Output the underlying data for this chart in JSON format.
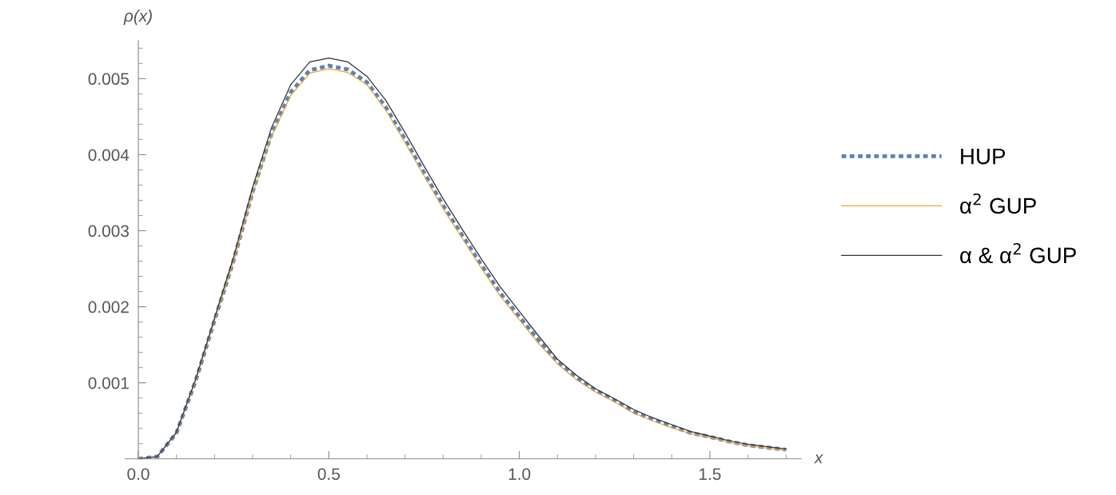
{
  "chart_data": {
    "type": "line",
    "xlabel": "x",
    "ylabel": "ρ(x)",
    "x": [
      0,
      0.05,
      0.1,
      0.15,
      0.2,
      0.25,
      0.3,
      0.35,
      0.4,
      0.45,
      0.5,
      0.55,
      0.6,
      0.65,
      0.7,
      0.75,
      0.8,
      0.85,
      0.9,
      0.95,
      1.0,
      1.05,
      1.1,
      1.15,
      1.2,
      1.25,
      1.3,
      1.35,
      1.4,
      1.45,
      1.5,
      1.55,
      1.6,
      1.65,
      1.7
    ],
    "series": [
      {
        "name": "HUP",
        "color": "#5e81b5",
        "line_style": "dotted",
        "values": [
          0,
          3e-05,
          0.00034,
          0.00102,
          0.00182,
          0.00261,
          0.00351,
          0.00428,
          0.00482,
          0.00511,
          0.00517,
          0.00512,
          0.00495,
          0.00462,
          0.0042,
          0.00376,
          0.00333,
          0.00294,
          0.00255,
          0.00218,
          0.00187,
          0.00156,
          0.00128,
          0.00107,
          0.0009,
          0.00077,
          0.00062,
          0.00052,
          0.00043,
          0.00034,
          0.00029,
          0.00023,
          0.00018,
          0.00015,
          0.00012
        ]
      },
      {
        "name": "α$^{2}$ GUP",
        "color": "#e8a838",
        "line_style": "solid",
        "values": [
          0,
          3e-05,
          0.00034,
          0.00102,
          0.00182,
          0.0026,
          0.00349,
          0.00425,
          0.00478,
          0.00507,
          0.00513,
          0.00508,
          0.00492,
          0.00458,
          0.00416,
          0.00372,
          0.00329,
          0.0029,
          0.00251,
          0.00214,
          0.00183,
          0.00152,
          0.00125,
          0.00104,
          0.00088,
          0.00075,
          0.0006,
          0.0005,
          0.00041,
          0.00033,
          0.00028,
          0.00022,
          0.00017,
          0.00014,
          0.00011
        ]
      },
      {
        "name": "α & α$^{2}$ GUP",
        "color": "#333333",
        "line_style": "solid",
        "values": [
          0,
          3e-05,
          0.00035,
          0.00104,
          0.00185,
          0.00265,
          0.00357,
          0.00436,
          0.00492,
          0.00522,
          0.00527,
          0.00522,
          0.00503,
          0.00471,
          0.00429,
          0.00385,
          0.00342,
          0.00302,
          0.00263,
          0.00226,
          0.00194,
          0.00162,
          0.00131,
          0.0011,
          0.00092,
          0.00079,
          0.00065,
          0.00054,
          0.00045,
          0.00036,
          0.0003,
          0.00024,
          0.00019,
          0.00016,
          0.00013
        ]
      }
    ],
    "xlim": [
      -0.035,
      1.74
    ],
    "ylim": [
      0,
      0.0055
    ],
    "xticks": [
      {
        "value": 0,
        "label": "0.0"
      },
      0.5,
      {
        "value": 1,
        "label": "1.0"
      },
      1.5
    ],
    "yticks": [
      0.001,
      0.002,
      0.003,
      0.004,
      0.005
    ],
    "grid": false,
    "legend": "right",
    "marker": "none"
  }
}
